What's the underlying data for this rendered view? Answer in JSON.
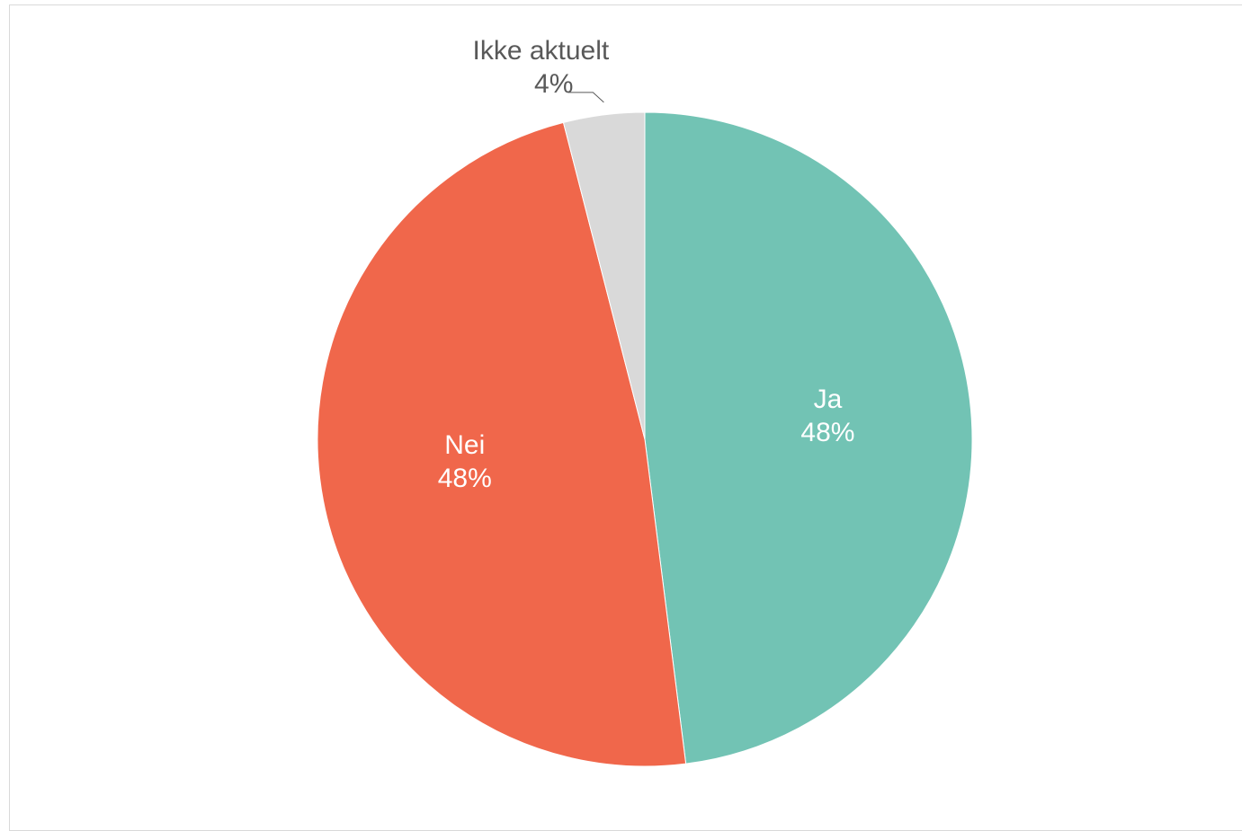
{
  "chart_data": {
    "type": "pie",
    "slices": [
      {
        "label": "Ja",
        "value": 48,
        "value_label": "48%",
        "color": "#72C3B4",
        "text_color": "#ffffff"
      },
      {
        "label": "Nei",
        "value": 48,
        "value_label": "48%",
        "color": "#F0674B",
        "text_color": "#ffffff"
      },
      {
        "label": "Ikke aktuelt",
        "value": 4,
        "value_label": "4%",
        "color": "#D9D9D9",
        "text_color": "#595959"
      }
    ],
    "start_angle": "12 o'clock",
    "direction": "clockwise",
    "legend": "none",
    "outside_labels": [
      "Ikke aktuelt"
    ]
  }
}
